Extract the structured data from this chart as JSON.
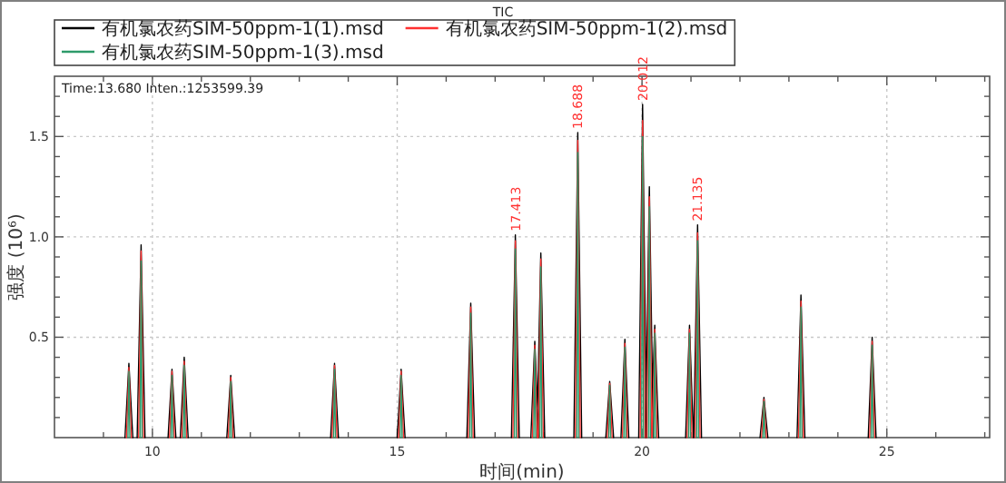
{
  "chart_data": {
    "type": "line",
    "title": "TIC",
    "xlabel": "时间(min)",
    "ylabel": "强度 (10⁶)",
    "annotations": [
      "Time:13.680  Inten.:1253599.39",
      {
        "text": "17.413",
        "x": 17.413,
        "y": 1.01
      },
      {
        "text": "18.688",
        "x": 18.688,
        "y": 1.52
      },
      {
        "text": "20.012",
        "x": 20.012,
        "y": 1.66
      },
      {
        "text": "21.135",
        "x": 21.135,
        "y": 1.06
      }
    ],
    "xlim": [
      8,
      27.1
    ],
    "ylim": [
      0,
      1.8
    ],
    "xticks": [
      {
        "value": 9,
        "label": null
      },
      10,
      {
        "value": 11,
        "label": null
      },
      {
        "value": 12,
        "label": null
      },
      {
        "value": 13,
        "label": null
      },
      {
        "value": 14,
        "label": null
      },
      15,
      {
        "value": 16,
        "label": null
      },
      {
        "value": 17,
        "label": null
      },
      {
        "value": 18,
        "label": null
      },
      {
        "value": 19,
        "label": null
      },
      20,
      {
        "value": 21,
        "label": null
      },
      {
        "value": 22,
        "label": null
      },
      {
        "value": 23,
        "label": null
      },
      {
        "value": 24,
        "label": null
      },
      25,
      {
        "value": 26,
        "label": null
      },
      {
        "value": 27,
        "label": null
      }
    ],
    "yticks": [
      {
        "value": 0.1,
        "label": null
      },
      {
        "value": 0.2,
        "label": null
      },
      {
        "value": 0.3,
        "label": null
      },
      {
        "value": 0.4,
        "label": null
      },
      0.5,
      {
        "value": 0.6,
        "label": null
      },
      {
        "value": 0.7,
        "label": null
      },
      {
        "value": 0.8,
        "label": null
      },
      {
        "value": 0.9,
        "label": null
      },
      {
        "value": 1,
        "label": "1.0"
      },
      {
        "value": 1.1,
        "label": null
      },
      {
        "value": 1.2,
        "label": null
      },
      {
        "value": 1.3,
        "label": null
      },
      {
        "value": 1.4,
        "label": null
      },
      1.5,
      {
        "value": 1.6,
        "label": null
      },
      {
        "value": 1.7,
        "label": null
      }
    ],
    "grid": true,
    "legend": "top left",
    "marker": "none",
    "line_style": "solid",
    "series": [
      {
        "name": "有机氯农药SIM-50ppm-1(1).msd",
        "color": "#000000",
        "x": [
          9.44,
          9.52,
          9.6,
          9.689,
          9.769,
          9.849,
          10.32,
          10.4,
          10.48,
          10.57,
          10.65,
          10.73,
          11.52,
          11.6,
          11.68,
          13.64,
          13.72,
          13.8,
          15,
          15.08,
          15.16,
          16.422,
          16.502,
          16.582,
          17.333,
          17.413,
          17.493,
          17.73,
          17.81,
          17.89,
          17.853,
          17.933,
          18.013,
          18.608,
          18.688,
          18.768,
          19.26,
          19.34,
          19.42,
          19.57,
          19.65,
          19.73,
          19.932,
          20.012,
          20.092,
          20.07,
          20.15,
          20.23,
          20.18,
          20.26,
          20.34,
          20.89,
          20.97,
          21.05,
          21.055,
          21.135,
          21.215,
          22.41,
          22.49,
          22.57,
          23.166,
          23.246,
          23.326,
          24.62,
          24.7,
          24.78
        ],
        "values": [
          0,
          0.37,
          0,
          0,
          0.96,
          0,
          0,
          0.34,
          0,
          0,
          0.4,
          0,
          0,
          0.31,
          0,
          0,
          0.37,
          0,
          0,
          0.34,
          0,
          0,
          0.67,
          0,
          0,
          1.01,
          0,
          0,
          0.48,
          0,
          0,
          0.92,
          0,
          0,
          1.52,
          0,
          0,
          0.28,
          0,
          0,
          0.49,
          0,
          0,
          1.66,
          0,
          0,
          1.25,
          0,
          0,
          0.56,
          0,
          0,
          0.56,
          0,
          0,
          1.06,
          0,
          0,
          0.2,
          0,
          0,
          0.71,
          0,
          0,
          0.5,
          0
        ]
      },
      {
        "name": "有机氯农药SIM-50ppm-1(2).msd",
        "color": "#ff3030",
        "x": [
          9.47,
          9.52,
          9.57,
          9.719,
          9.769,
          9.819,
          10.35,
          10.4,
          10.45,
          10.6,
          10.65,
          10.7,
          11.55,
          11.6,
          11.65,
          13.67,
          13.72,
          13.77,
          15.03,
          15.08,
          15.13,
          16.452,
          16.502,
          16.552,
          17.363,
          17.413,
          17.463,
          17.76,
          17.81,
          17.86,
          17.883,
          17.933,
          17.983,
          18.638,
          18.688,
          18.738,
          19.29,
          19.34,
          19.39,
          19.6,
          19.65,
          19.7,
          19.962,
          20.012,
          20.062,
          20.1,
          20.15,
          20.2,
          20.21,
          20.26,
          20.31,
          20.92,
          20.97,
          21.02,
          21.085,
          21.135,
          21.185,
          22.44,
          22.49,
          22.54,
          23.196,
          23.246,
          23.296,
          24.65,
          24.7,
          24.75
        ],
        "values": [
          0,
          0.35,
          0,
          0,
          0.93,
          0,
          0,
          0.33,
          0,
          0,
          0.38,
          0,
          0,
          0.3,
          0,
          0,
          0.36,
          0,
          0,
          0.33,
          0,
          0,
          0.65,
          0,
          0,
          0.98,
          0,
          0,
          0.46,
          0,
          0,
          0.89,
          0,
          0,
          1.48,
          0,
          0,
          0.27,
          0,
          0,
          0.47,
          0,
          0,
          1.58,
          0,
          0,
          1.2,
          0,
          0,
          0.54,
          0,
          0,
          0.54,
          0,
          0,
          1.02,
          0,
          0,
          0.19,
          0,
          0,
          0.68,
          0,
          0,
          0.48,
          0
        ]
      },
      {
        "name": "有机氯农药SIM-50ppm-1(3).msd",
        "color": "#2e9a6a",
        "x": [
          9.5,
          9.52,
          9.54,
          9.749,
          9.769,
          9.789,
          10.38,
          10.4,
          10.42,
          10.63,
          10.65,
          10.67,
          11.58,
          11.6,
          11.62,
          13.7,
          13.72,
          13.74,
          15.06,
          15.08,
          15.1,
          16.482,
          16.502,
          16.522,
          17.393,
          17.413,
          17.433,
          17.79,
          17.81,
          17.83,
          17.913,
          17.933,
          17.953,
          18.668,
          18.688,
          18.708,
          19.32,
          19.34,
          19.36,
          19.63,
          19.65,
          19.67,
          19.992,
          20.012,
          20.032,
          20.13,
          20.15,
          20.17,
          20.24,
          20.26,
          20.28,
          20.95,
          20.97,
          20.99,
          21.115,
          21.135,
          21.155,
          22.47,
          22.49,
          22.51,
          23.226,
          23.246,
          23.266,
          24.68,
          24.7,
          24.72
        ],
        "values": [
          0,
          0.33,
          0,
          0,
          0.88,
          0,
          0,
          0.31,
          0,
          0,
          0.36,
          0,
          0,
          0.28,
          0,
          0,
          0.34,
          0,
          0,
          0.31,
          0,
          0,
          0.62,
          0,
          0,
          0.94,
          0,
          0,
          0.44,
          0,
          0,
          0.85,
          0,
          0,
          1.42,
          0,
          0,
          0.26,
          0,
          0,
          0.45,
          0,
          0,
          1.5,
          0,
          0,
          1.15,
          0,
          0,
          0.52,
          0,
          0,
          0.52,
          0,
          0,
          0.98,
          0,
          0,
          0.18,
          0,
          0,
          0.65,
          0,
          0,
          0.46,
          0
        ]
      }
    ]
  }
}
